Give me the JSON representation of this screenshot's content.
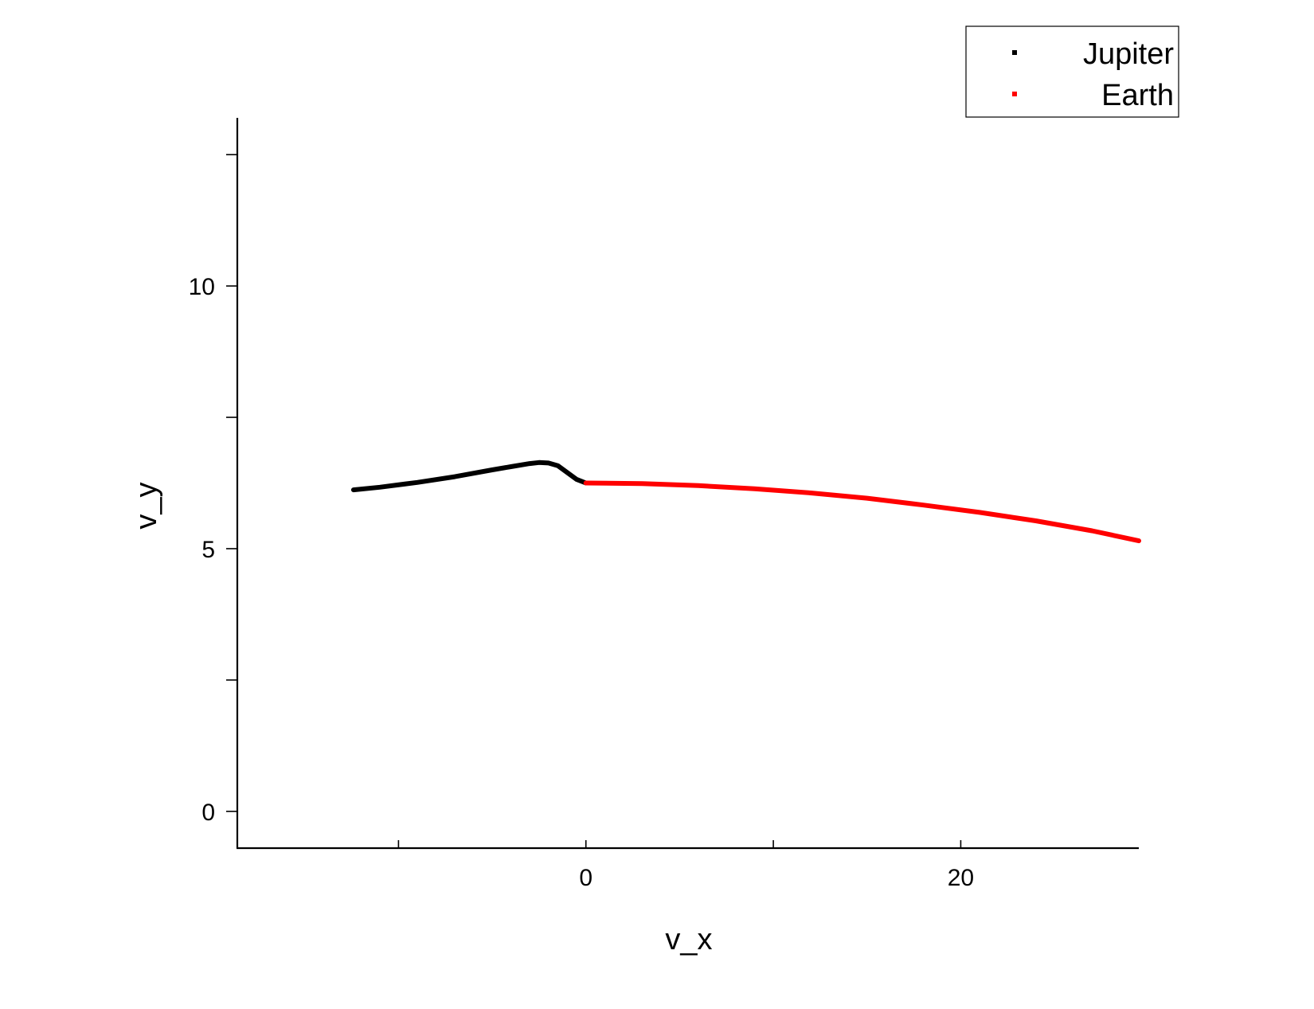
{
  "chart_data": {
    "type": "line",
    "xlabel": "v_x",
    "ylabel": "v_y",
    "xlim": [
      -18.6,
      29.5
    ],
    "ylim": [
      -0.7,
      13.2
    ],
    "x_ticks": [
      {
        "value": -10,
        "label": ""
      },
      {
        "value": 0,
        "label": "0"
      },
      {
        "value": 10,
        "label": ""
      },
      {
        "value": 20,
        "label": "20"
      }
    ],
    "y_ticks": [
      {
        "value": 0,
        "label": "0"
      },
      {
        "value": 2.5,
        "label": ""
      },
      {
        "value": 5,
        "label": "5"
      },
      {
        "value": 7.5,
        "label": ""
      },
      {
        "value": 10,
        "label": "10"
      },
      {
        "value": 12.5,
        "label": ""
      }
    ],
    "legend_position": "top-right",
    "series": [
      {
        "name": "Jupiter",
        "color": "#000000",
        "x": [
          -12.4,
          -11,
          -9,
          -7,
          -5,
          -4,
          -3,
          -2.5,
          -2,
          -1.5,
          -1,
          -0.5,
          0
        ],
        "y": [
          6.12,
          6.17,
          6.26,
          6.37,
          6.5,
          6.56,
          6.62,
          6.64,
          6.63,
          6.58,
          6.45,
          6.32,
          6.25
        ]
      },
      {
        "name": "Earth",
        "color": "#ff0000",
        "x": [
          0,
          3,
          6,
          9,
          12,
          15,
          18,
          21,
          24,
          27,
          29.5
        ],
        "y": [
          6.25,
          6.24,
          6.2,
          6.14,
          6.06,
          5.96,
          5.83,
          5.69,
          5.53,
          5.34,
          5.15
        ]
      }
    ]
  }
}
